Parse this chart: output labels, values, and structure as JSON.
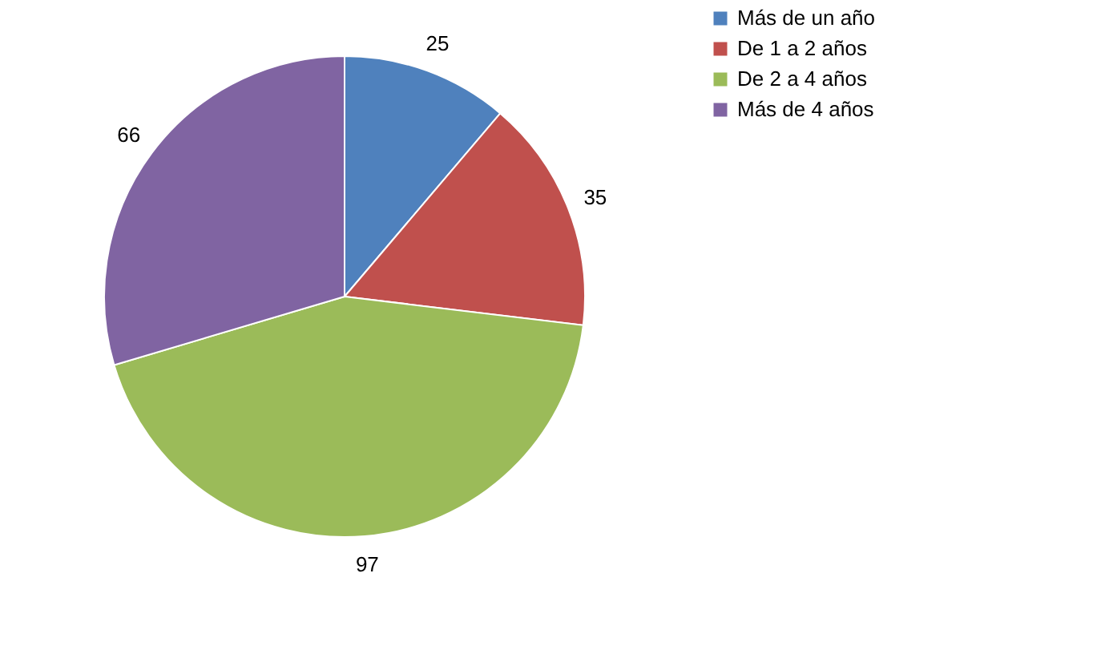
{
  "chart_data": {
    "type": "pie",
    "categories": [
      "Más de un año",
      "De 1 a 2 años",
      "De 2 a 4 años",
      "Más de 4 años"
    ],
    "values": [
      25,
      35,
      97,
      66
    ],
    "colors": [
      "#4f81bd",
      "#c0504d",
      "#9bbb59",
      "#8064a2"
    ],
    "data_labels": true,
    "legend": "right"
  }
}
